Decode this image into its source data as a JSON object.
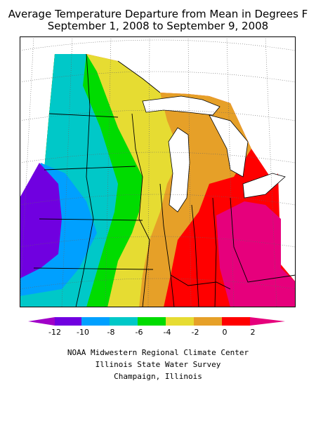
{
  "title": {
    "line1": "Average Temperature Departure from Mean in Degrees F",
    "line2": "September 1, 2008 to September 9, 2008"
  },
  "legend": {
    "ticks": [
      "-12",
      "-10",
      "-8",
      "-6",
      "-4",
      "-2",
      "0",
      "2"
    ],
    "colors": [
      "#a000c8",
      "#7000e0",
      "#00a0ff",
      "#00c8c8",
      "#00dc00",
      "#e6dc32",
      "#e6a028",
      "#ff0000",
      "#e6007c"
    ]
  },
  "credits": {
    "line1": "NOAA Midwestern Regional Climate Center",
    "line2": "Illinois State Water Survey",
    "line3": "Champaign, Illinois"
  }
}
